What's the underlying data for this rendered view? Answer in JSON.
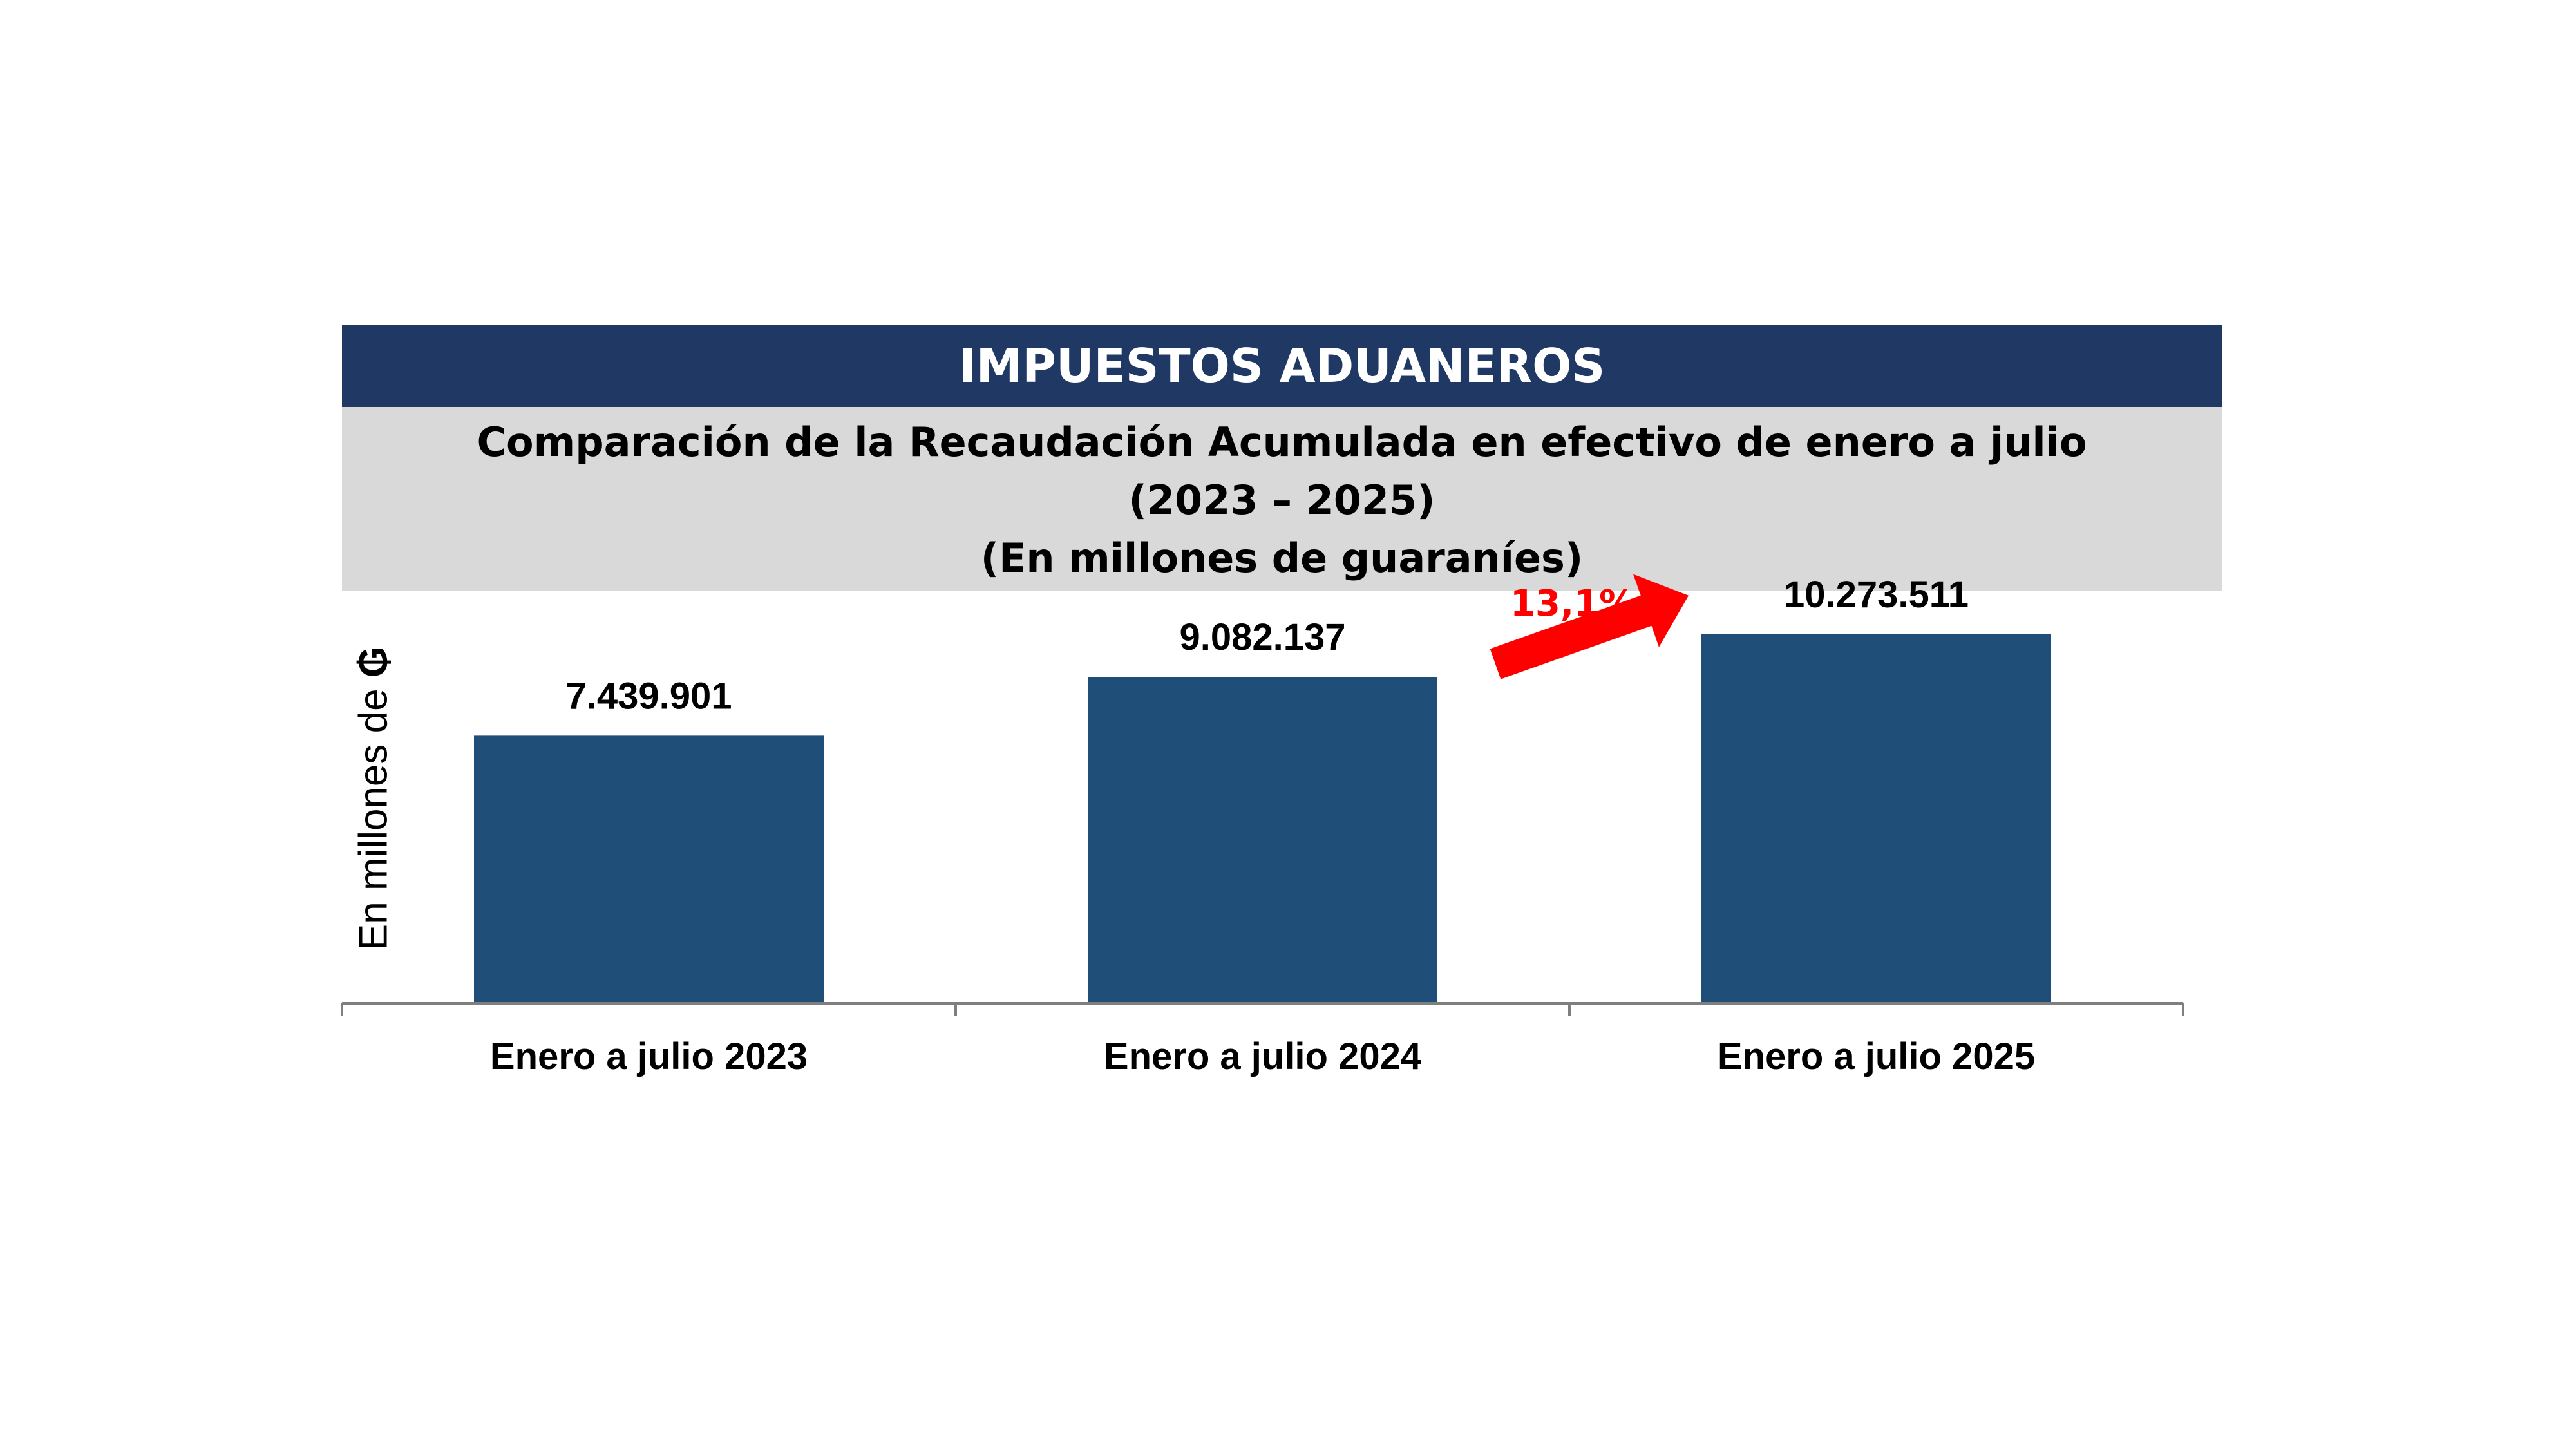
{
  "header": {
    "banner_title": "IMPUESTOS ADUANEROS",
    "subtitle_line1": "Comparación de la Recaudación Acumulada en efectivo de enero a julio",
    "subtitle_line2": "(2023 – 2025)",
    "subtitle_line3": "(En millones de guaraníes)"
  },
  "annotation": {
    "growth_label": "13,1%",
    "arrow_color": "#ff0000"
  },
  "colors": {
    "banner": "#1f3864",
    "subtitle_background": "#d9d9d9",
    "bar": "#1f4e79"
  },
  "chart_data": {
    "type": "bar",
    "title": "",
    "xlabel": "",
    "ylabel_text": "En millones de ",
    "ylabel_currency": "₲",
    "categories": [
      "Enero a julio 2023",
      "Enero a julio 2024",
      "Enero a julio 2025"
    ],
    "values": [
      7439901,
      9082137,
      10273511
    ],
    "data_labels": [
      "7.439.901",
      "9.082.137",
      "10.273.511"
    ],
    "ylim": [
      0,
      10900000
    ],
    "grid": false,
    "legend": "none"
  }
}
